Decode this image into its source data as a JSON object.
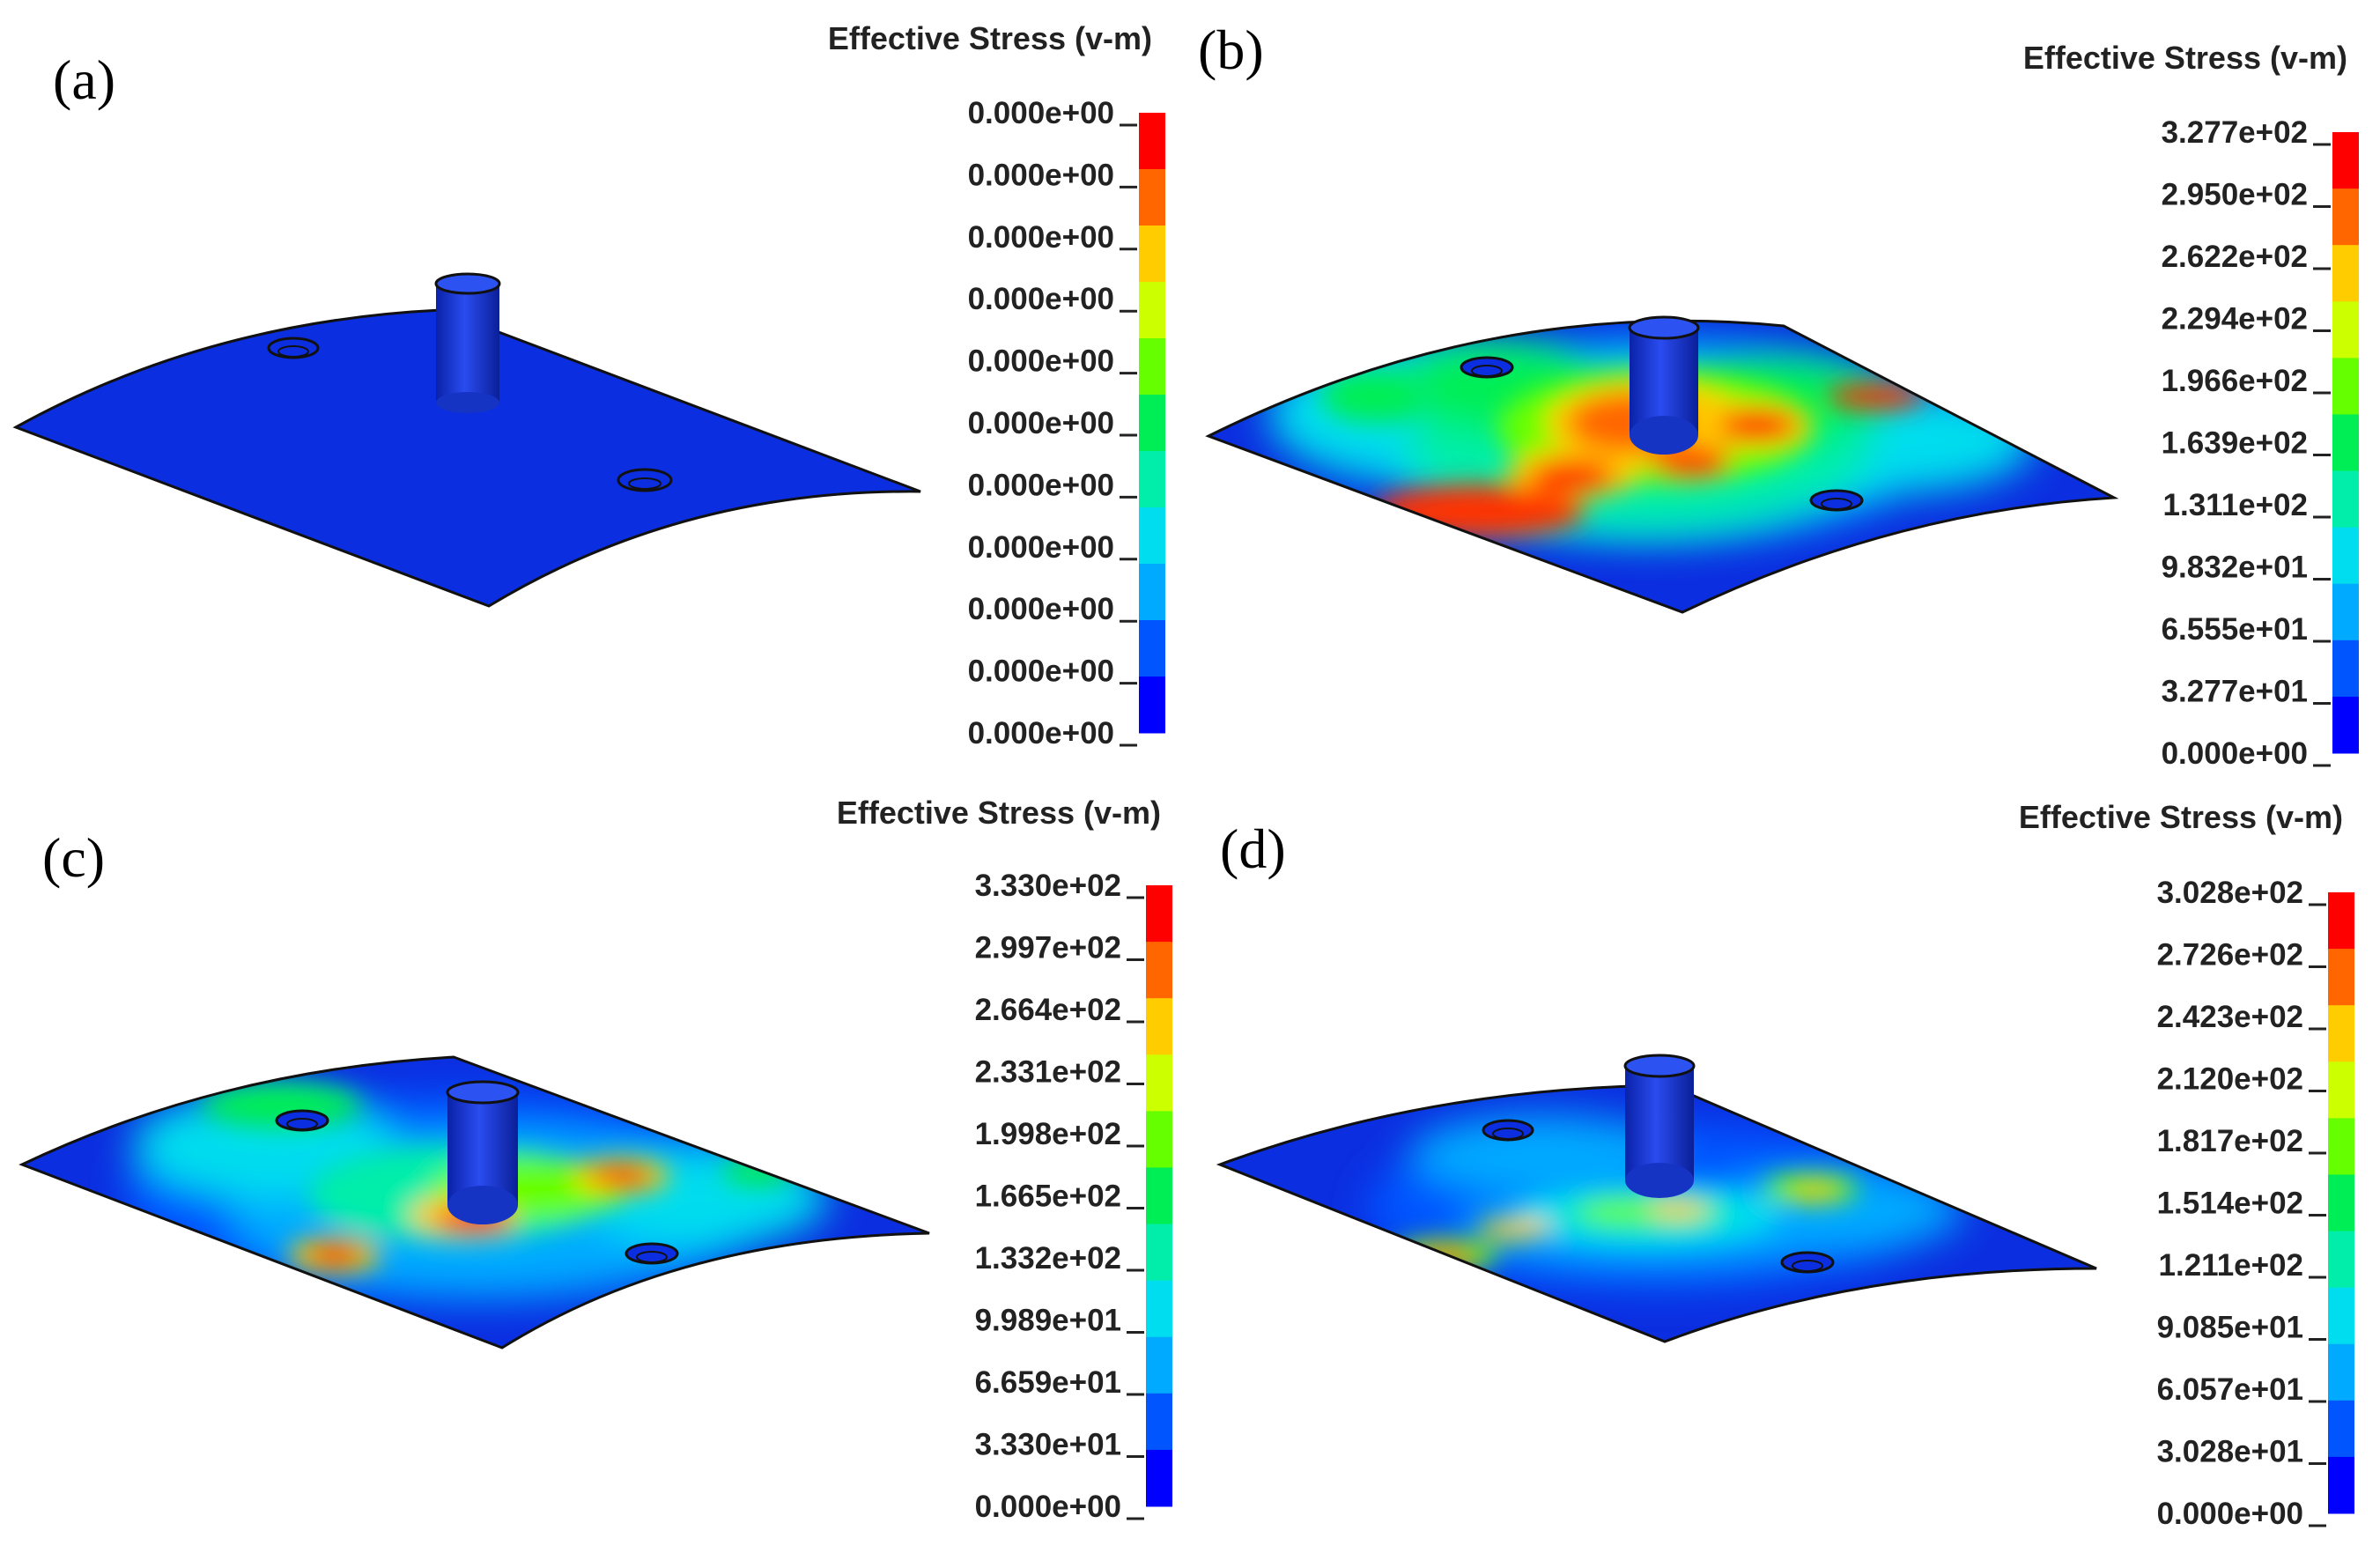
{
  "panels": [
    {
      "label": "(a)",
      "legend_title": "Effective Stress (v-m)",
      "legend_values": [
        "0.000e+00",
        "0.000e+00",
        "0.000e+00",
        "0.000e+00",
        "0.000e+00",
        "0.000e+00",
        "0.000e+00",
        "0.000e+00",
        "0.000e+00",
        "0.000e+00",
        "0.000e+00"
      ],
      "stress_state": "unloaded"
    },
    {
      "label": "(b)",
      "legend_title": "Effective Stress (v-m)",
      "legend_values": [
        "3.277e+02",
        "2.950e+02",
        "2.622e+02",
        "2.294e+02",
        "1.966e+02",
        "1.639e+02",
        "1.311e+02",
        "9.832e+01",
        "6.555e+01",
        "3.277e+01",
        "0.000e+00"
      ],
      "stress_state": "high"
    },
    {
      "label": "(c)",
      "legend_title": "Effective Stress (v-m)",
      "legend_values": [
        "3.330e+02",
        "2.997e+02",
        "2.664e+02",
        "2.331e+02",
        "1.998e+02",
        "1.665e+02",
        "1.332e+02",
        "9.989e+01",
        "6.659e+01",
        "3.330e+01",
        "0.000e+00"
      ],
      "stress_state": "medium"
    },
    {
      "label": "(d)",
      "legend_title": "Effective Stress (v-m)",
      "legend_values": [
        "3.028e+02",
        "2.726e+02",
        "2.423e+02",
        "2.120e+02",
        "1.817e+02",
        "1.514e+02",
        "1.211e+02",
        "9.085e+01",
        "6.057e+01",
        "3.028e+01",
        "0.000e+00"
      ],
      "stress_state": "low"
    }
  ],
  "colormap": [
    "#ff0000",
    "#ff6600",
    "#ffcc00",
    "#ccff00",
    "#66ff00",
    "#00ee55",
    "#00eeaa",
    "#00ddee",
    "#00aaff",
    "#0055ff",
    "#0000ff"
  ],
  "colors": {
    "base_blue": "#0b2ee0",
    "cylinder": "#1a3fd6",
    "edge": "#111111"
  }
}
